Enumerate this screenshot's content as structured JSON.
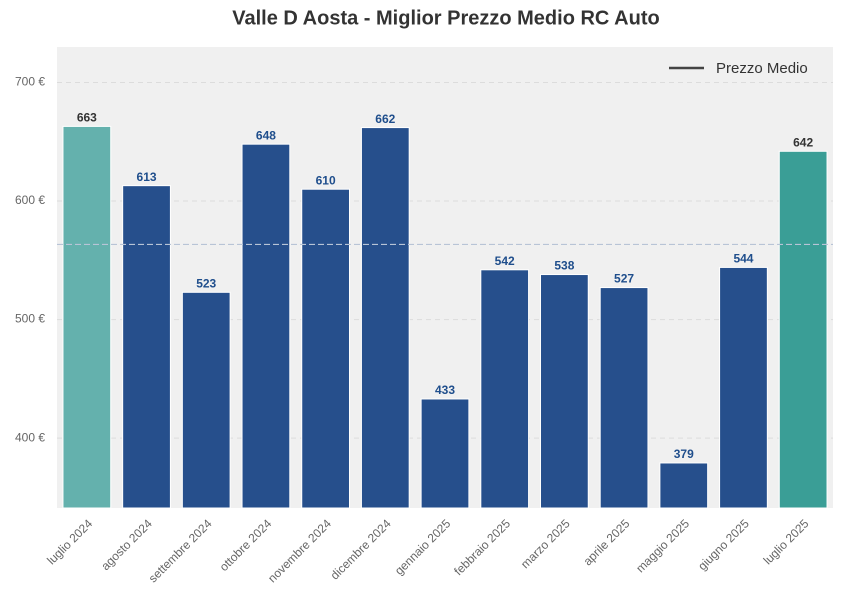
{
  "chart_data": {
    "type": "bar",
    "title": "Valle D Aosta - Miglior Prezzo Medio RC Auto",
    "categories": [
      "luglio 2024",
      "agosto 2024",
      "settembre 2024",
      "ottobre 2024",
      "novembre 2024",
      "dicembre 2024",
      "gennaio 2025",
      "febbraio 2025",
      "marzo 2025",
      "aprile 2025",
      "maggio 2025",
      "giugno 2025",
      "luglio 2025"
    ],
    "values": [
      663,
      613,
      523,
      648,
      610,
      662,
      433,
      542,
      538,
      527,
      379,
      544,
      642
    ],
    "colors": [
      "#64b1ad",
      "#264f8c",
      "#264f8c",
      "#264f8c",
      "#264f8c",
      "#264f8c",
      "#264f8c",
      "#264f8c",
      "#264f8c",
      "#264f8c",
      "#264f8c",
      "#264f8c",
      "#3a9e96"
    ],
    "average": {
      "name": "Prezzo Medio",
      "value": 563.4
    },
    "ylim": [
      341,
      730
    ],
    "yticks": [
      {
        "value": 400,
        "label": "400 €"
      },
      {
        "value": 500,
        "label": "500 €"
      },
      {
        "value": 600,
        "label": "600 €"
      },
      {
        "value": 700,
        "label": "700 €"
      }
    ],
    "grid": true,
    "legend": "upper right"
  }
}
